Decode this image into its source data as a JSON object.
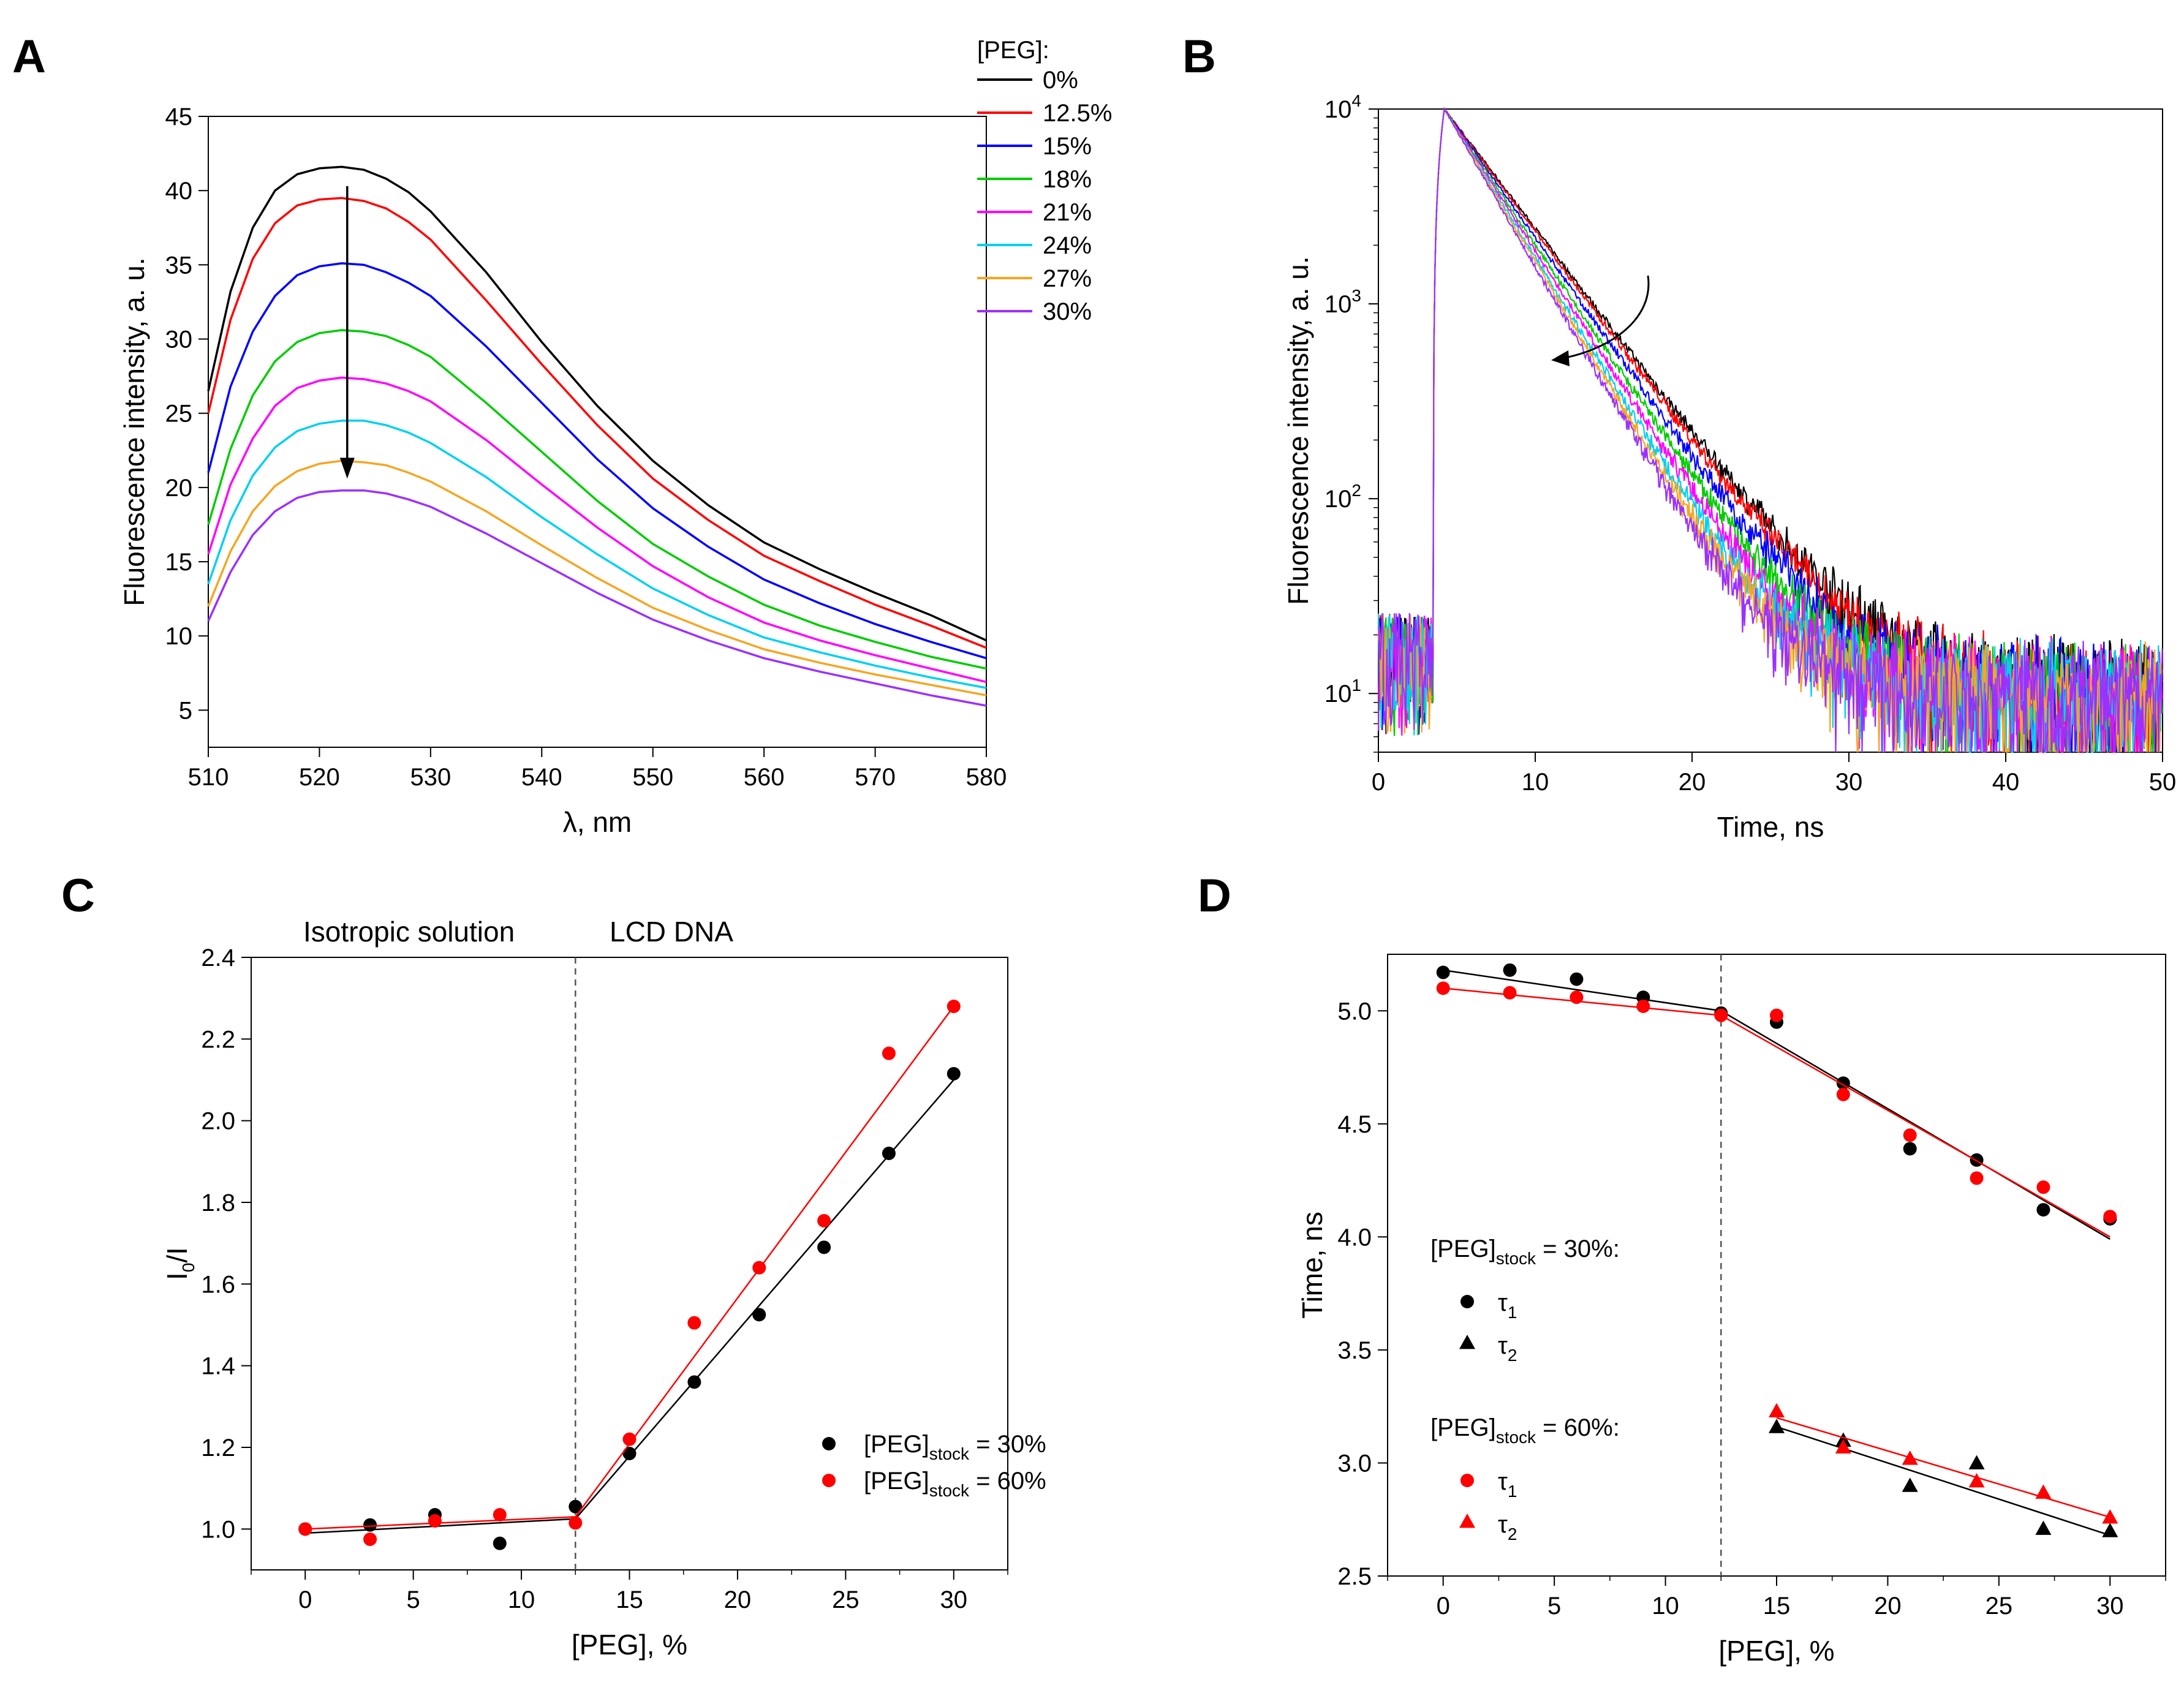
{
  "panels": {
    "A": {
      "letter": "A"
    },
    "B": {
      "letter": "B"
    },
    "C": {
      "letter": "C"
    },
    "D": {
      "letter": "D"
    }
  },
  "chart_data": [
    {
      "id": "A",
      "type": "line",
      "xlabel": "λ, nm",
      "ylabel": "Fluorescence intensity, a. u.",
      "xlim": [
        510,
        580
      ],
      "ylim": [
        2.5,
        45
      ],
      "xticks": [
        510,
        520,
        530,
        540,
        550,
        560,
        570,
        580
      ],
      "yticks": [
        5,
        10,
        15,
        20,
        25,
        30,
        35,
        40,
        45
      ],
      "legend_title": "[PEG]:",
      "annotation": "arrow pointing downward (decreasing intensity with increasing PEG)",
      "x": [
        510,
        512,
        514,
        516,
        518,
        520,
        522,
        524,
        526,
        528,
        530,
        535,
        540,
        545,
        550,
        555,
        560,
        565,
        570,
        575,
        580
      ],
      "series": [
        {
          "name": "0%",
          "color": "#000000",
          "values": [
            26.5,
            33.2,
            37.5,
            40.0,
            41.1,
            41.5,
            41.6,
            41.4,
            40.8,
            39.9,
            38.6,
            34.5,
            29.8,
            25.5,
            21.8,
            18.8,
            16.3,
            14.5,
            12.9,
            11.4,
            9.7
          ]
        },
        {
          "name": "12.5%",
          "color": "#ff0000",
          "values": [
            25.0,
            31.3,
            35.4,
            37.8,
            39.0,
            39.4,
            39.5,
            39.3,
            38.8,
            37.9,
            36.7,
            32.6,
            28.3,
            24.2,
            20.6,
            17.8,
            15.4,
            13.7,
            12.1,
            10.7,
            9.2
          ]
        },
        {
          "name": "15%",
          "color": "#0000ff",
          "values": [
            21.0,
            26.8,
            30.5,
            32.9,
            34.3,
            34.9,
            35.1,
            35.0,
            34.5,
            33.8,
            32.9,
            29.5,
            25.7,
            21.9,
            18.6,
            16.0,
            13.8,
            12.2,
            10.8,
            9.6,
            8.5
          ]
        },
        {
          "name": "18%",
          "color": "#00cc00",
          "values": [
            17.5,
            22.6,
            26.2,
            28.5,
            29.8,
            30.4,
            30.6,
            30.5,
            30.2,
            29.6,
            28.8,
            25.7,
            22.4,
            19.1,
            16.2,
            14.0,
            12.1,
            10.7,
            9.6,
            8.6,
            7.8
          ]
        },
        {
          "name": "21%",
          "color": "#ff00ff",
          "values": [
            15.5,
            20.2,
            23.3,
            25.5,
            26.7,
            27.2,
            27.4,
            27.3,
            27.0,
            26.5,
            25.8,
            23.2,
            20.2,
            17.3,
            14.7,
            12.6,
            10.9,
            9.7,
            8.7,
            7.8,
            6.9
          ]
        },
        {
          "name": "24%",
          "color": "#00d0f0",
          "values": [
            13.5,
            17.8,
            20.8,
            22.7,
            23.8,
            24.3,
            24.5,
            24.5,
            24.2,
            23.7,
            23.0,
            20.7,
            18.0,
            15.5,
            13.2,
            11.4,
            9.9,
            8.9,
            8.0,
            7.2,
            6.5
          ]
        },
        {
          "name": "27%",
          "color": "#f5a623",
          "values": [
            12.0,
            15.7,
            18.4,
            20.1,
            21.1,
            21.6,
            21.8,
            21.7,
            21.5,
            21.0,
            20.4,
            18.4,
            16.1,
            13.9,
            11.9,
            10.4,
            9.1,
            8.2,
            7.4,
            6.7,
            6.0
          ]
        },
        {
          "name": "30%",
          "color": "#9b30ff",
          "values": [
            11.0,
            14.3,
            16.8,
            18.4,
            19.3,
            19.7,
            19.8,
            19.8,
            19.6,
            19.2,
            18.7,
            16.9,
            14.9,
            12.9,
            11.1,
            9.7,
            8.5,
            7.6,
            6.8,
            6.0,
            5.3
          ]
        }
      ]
    },
    {
      "id": "B",
      "type": "line",
      "xlabel": "Time, ns",
      "ylabel": "Fluorescence intensity, a. u.",
      "xlim": [
        0,
        50
      ],
      "ylim": [
        5,
        10000
      ],
      "yscale": "log",
      "xticks": [
        0,
        10,
        20,
        30,
        40,
        50
      ],
      "yticks": [
        "10^1",
        "10^2",
        "10^3",
        "10^4"
      ],
      "annotation": "curved arrow indicating faster decay with increasing PEG",
      "rise_ns": 3.5,
      "peak_ns": 4.2,
      "peak_counts": 10000,
      "background_counts": 10,
      "series": [
        {
          "name": "0%",
          "color": "#000000",
          "decay_tau_ns": 4.1
        },
        {
          "name": "12.5%",
          "color": "#ff0000",
          "decay_tau_ns": 4.0
        },
        {
          "name": "15%",
          "color": "#0000ff",
          "decay_tau_ns": 3.8
        },
        {
          "name": "18%",
          "color": "#00cc00",
          "decay_tau_ns": 3.6
        },
        {
          "name": "21%",
          "color": "#ff00ff",
          "decay_tau_ns": 3.45
        },
        {
          "name": "24%",
          "color": "#00d0f0",
          "decay_tau_ns": 3.3
        },
        {
          "name": "27%",
          "color": "#f5a623",
          "decay_tau_ns": 3.2
        },
        {
          "name": "30%",
          "color": "#9b30ff",
          "decay_tau_ns": 3.1
        }
      ]
    },
    {
      "id": "C",
      "type": "scatter",
      "xlabel": "[PEG], %",
      "ylabel_main": "I",
      "ylabel_sub": "0",
      "ylabel_tail": "/I",
      "xlim": [
        -2.5,
        32.5
      ],
      "ylim": [
        0.9,
        2.4
      ],
      "xticks": [
        0,
        5,
        10,
        15,
        20,
        25,
        30
      ],
      "yticks": [
        "1.0",
        "1.2",
        "1.4",
        "1.6",
        "1.8",
        "2.0",
        "2.2",
        "2.4"
      ],
      "region_labels": {
        "left": "Isotropic solution",
        "right": "LCD DNA"
      },
      "divider_x": 12.5,
      "series": [
        {
          "name_main": "[PEG]",
          "name_sub": "stock",
          "name_tail": " = 30%",
          "color": "#000000",
          "x": [
            0,
            3,
            6,
            9,
            12.5,
            15,
            18,
            21,
            24,
            27,
            30
          ],
          "y": [
            1.0,
            1.01,
            1.035,
            0.965,
            1.055,
            1.185,
            1.36,
            1.525,
            1.69,
            1.92,
            2.115
          ],
          "fit_segments": [
            [
              [
                0,
                0.99
              ],
              [
                12.5,
                1.025
              ]
            ],
            [
              [
                12.5,
                1.025
              ],
              [
                30,
                2.1
              ]
            ]
          ]
        },
        {
          "name_main": "[PEG]",
          "name_sub": "stock",
          "name_tail": " = 60%",
          "color": "#ff0000",
          "x": [
            0,
            3,
            6,
            9,
            12.5,
            15,
            18,
            21,
            24,
            27,
            30
          ],
          "y": [
            1.0,
            0.975,
            1.02,
            1.035,
            1.015,
            1.22,
            1.505,
            1.64,
            1.755,
            2.165,
            2.28
          ],
          "fit_segments": [
            [
              [
                0,
                1.0
              ],
              [
                12.5,
                1.03
              ]
            ],
            [
              [
                12.5,
                1.03
              ],
              [
                30,
                2.28
              ]
            ]
          ]
        }
      ]
    },
    {
      "id": "D",
      "type": "scatter",
      "xlabel": "[PEG], %",
      "ylabel": "Time, ns",
      "xlim": [
        -2.5,
        32.5
      ],
      "ylim": [
        2.5,
        5.25
      ],
      "xticks": [
        0,
        5,
        10,
        15,
        20,
        25,
        30
      ],
      "yticks": [
        "2.5",
        "3.0",
        "3.5",
        "4.0",
        "4.5",
        "5.0"
      ],
      "divider_x": 12.5,
      "legend_groups": [
        {
          "title_main": "[PEG]",
          "title_sub": "stock",
          "title_tail": " = 30%:"
        },
        {
          "title_main": "[PEG]",
          "title_sub": "stock",
          "title_tail": " = 60%:"
        }
      ],
      "legend_entries": {
        "tau1": "τ",
        "tau1_sub": "1",
        "tau2": "τ",
        "tau2_sub": "2"
      },
      "series": [
        {
          "name": "τ1 (30%)",
          "color": "#000000",
          "marker": "circle",
          "x": [
            0,
            3,
            6,
            9,
            12.5,
            15,
            18,
            21,
            24,
            27,
            30
          ],
          "y": [
            5.17,
            5.18,
            5.14,
            5.06,
            4.99,
            4.95,
            4.68,
            4.39,
            4.34,
            4.12,
            4.08
          ],
          "fit_segments": [
            [
              [
                0,
                5.18
              ],
              [
                12.5,
                5.0
              ]
            ],
            [
              [
                12.5,
                5.0
              ],
              [
                30,
                3.99
              ]
            ]
          ]
        },
        {
          "name": "τ1 (60%)",
          "color": "#ff0000",
          "marker": "circle",
          "x": [
            0,
            3,
            6,
            9,
            12.5,
            15,
            18,
            21,
            24,
            27,
            30
          ],
          "y": [
            5.1,
            5.08,
            5.06,
            5.02,
            4.98,
            4.98,
            4.63,
            4.45,
            4.26,
            4.22,
            4.09
          ],
          "fit_segments": [
            [
              [
                0,
                5.1
              ],
              [
                12.5,
                4.98
              ]
            ],
            [
              [
                12.5,
                4.98
              ],
              [
                30,
                4.0
              ]
            ]
          ]
        },
        {
          "name": "τ2 (30%)",
          "color": "#000000",
          "marker": "triangle",
          "x": [
            15,
            18,
            21,
            24,
            27,
            30
          ],
          "y": [
            3.16,
            3.1,
            2.9,
            3.0,
            2.71,
            2.7
          ],
          "fit_segments": [
            [
              [
                15,
                3.16
              ],
              [
                30,
                2.68
              ]
            ]
          ]
        },
        {
          "name": "τ2 (60%)",
          "color": "#ff0000",
          "marker": "triangle",
          "x": [
            15,
            18,
            21,
            24,
            27,
            30
          ],
          "y": [
            3.23,
            3.07,
            3.02,
            2.92,
            2.87,
            2.76
          ],
          "fit_segments": [
            [
              [
                15,
                3.2
              ],
              [
                30,
                2.76
              ]
            ]
          ]
        }
      ]
    }
  ]
}
